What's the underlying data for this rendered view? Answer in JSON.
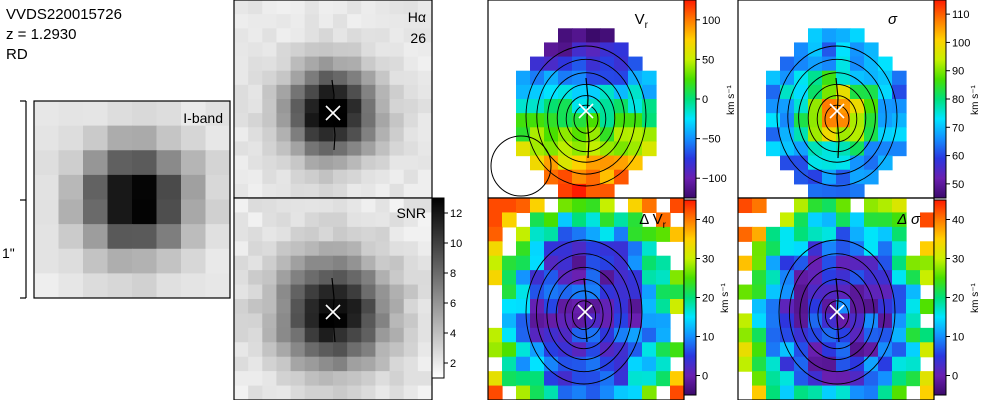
{
  "header": {
    "object_id": "VVDS220015726",
    "redshift": "z = 1.2930",
    "class": "RD"
  },
  "scale_bar": {
    "label": "1\""
  },
  "panels": {
    "iband": {
      "label": "I-band"
    },
    "halpha": {
      "label": "Hα",
      "value": "26"
    },
    "snr": {
      "label": "SNR",
      "colorbar_ticks": [
        "12",
        "10",
        "8",
        "6",
        "4",
        "2"
      ]
    },
    "vr": {
      "label": "V",
      "label_sub": "r",
      "colorbar_ticks": [
        "100",
        "50",
        "0",
        "−50",
        "−100"
      ],
      "unit": "km s⁻¹"
    },
    "sigma": {
      "label": "σ",
      "colorbar_ticks": [
        "110",
        "100",
        "90",
        "80",
        "70",
        "60",
        "50"
      ],
      "unit": "km s⁻¹"
    },
    "dvr": {
      "label": "Δ V",
      "label_sub": "r",
      "colorbar_ticks": [
        "40",
        "30",
        "20",
        "10",
        "0"
      ],
      "unit": "km s⁻¹"
    },
    "dsigma": {
      "label": "Δ σ",
      "colorbar_ticks": [
        "40",
        "30",
        "20",
        "10",
        "0"
      ],
      "unit": "km s⁻¹"
    }
  },
  "colors": {
    "grey_low": "#ffffff",
    "grey_high": "#000000",
    "rainbow": [
      "#3b0a6b",
      "#6a1fb0",
      "#2a37e0",
      "#1490ff",
      "#00e5ff",
      "#00e07a",
      "#48e000",
      "#c8f000",
      "#ffd000",
      "#ff7a00",
      "#ff1a00"
    ],
    "marker": "#ffffff",
    "contour": "#000000"
  }
}
